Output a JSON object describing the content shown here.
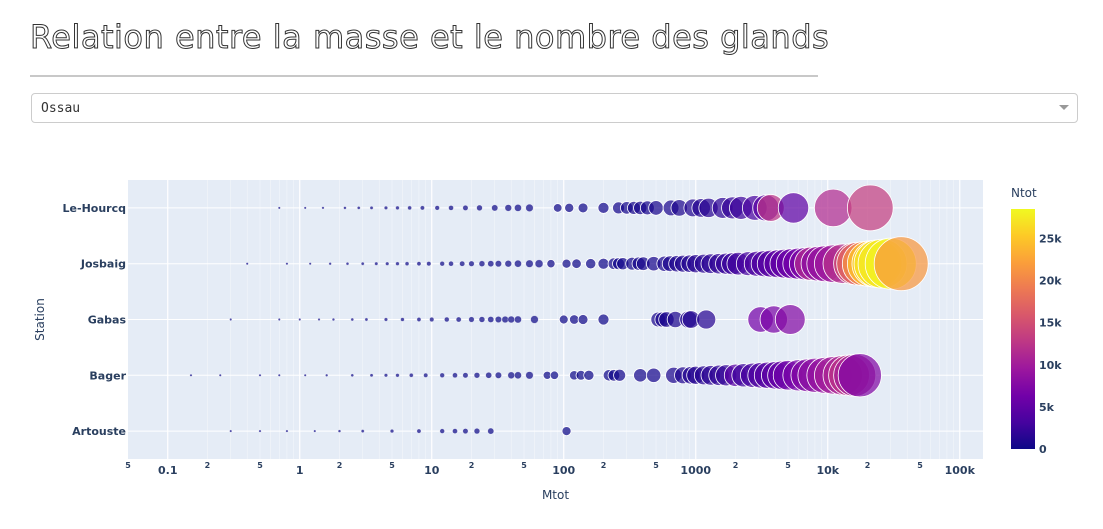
{
  "header": {
    "title": "Relation entre la masse et le nombre des glands"
  },
  "station_select": {
    "selected": "Ossau"
  },
  "chart_data": {
    "type": "scatter",
    "xlabel": "Mtot",
    "ylabel": "Station",
    "xscale": "log",
    "xlim": [
      0.05,
      150000
    ],
    "categories": [
      "Le-Hourcq",
      "Josbaig",
      "Gabas",
      "Bager",
      "Artouste"
    ],
    "x_major_ticks": [
      "0.1",
      "1",
      "10",
      "100",
      "1000",
      "10k",
      "100k"
    ],
    "x_minor_ticks": [
      "5",
      "2",
      "5",
      "2",
      "5",
      "2",
      "5",
      "2",
      "5",
      "2",
      "5",
      "2",
      "5",
      "2",
      "5"
    ],
    "colorbar": {
      "title": "Ntot",
      "ticks": [
        "0",
        "5k",
        "10k",
        "15k",
        "20k",
        "25k"
      ],
      "range": [
        0,
        28500
      ],
      "colors": [
        "#0d0887",
        "#46039f",
        "#7201a8",
        "#9c179e",
        "#bd3786",
        "#d8576b",
        "#ed7953",
        "#fb9f3a",
        "#fdca26",
        "#f0f921"
      ]
    },
    "plot_bgcolor": "#e5ecf6",
    "series": [
      {
        "station": "Le-Hourcq",
        "points": [
          [
            0.7,
            3
          ],
          [
            1.1,
            4
          ],
          [
            1.5,
            4
          ],
          [
            2.2,
            5
          ],
          [
            2.8,
            6
          ],
          [
            3.5,
            6
          ],
          [
            4.5,
            8
          ],
          [
            5.5,
            9
          ],
          [
            6.8,
            12
          ],
          [
            8.5,
            14
          ],
          [
            11,
            18
          ],
          [
            14,
            22
          ],
          [
            18,
            30
          ],
          [
            23,
            35
          ],
          [
            30,
            45
          ],
          [
            38,
            60
          ],
          [
            45,
            75
          ],
          [
            55,
            90
          ],
          [
            90,
            160
          ],
          [
            110,
            180
          ],
          [
            140,
            230
          ],
          [
            200,
            350
          ],
          [
            260,
            420
          ],
          [
            300,
            470
          ],
          [
            340,
            520
          ],
          [
            380,
            580
          ],
          [
            430,
            640
          ],
          [
            500,
            700
          ],
          [
            650,
            850
          ],
          [
            750,
            950
          ],
          [
            950,
            1150
          ],
          [
            1100,
            1350
          ],
          [
            1250,
            1550
          ],
          [
            1600,
            1900
          ],
          [
            1900,
            2300
          ],
          [
            2200,
            2700
          ],
          [
            2800,
            3400
          ],
          [
            3400,
            4600
          ],
          [
            3700,
            12500
          ],
          [
            5500,
            5000
          ],
          [
            11000,
            11500
          ],
          [
            21000,
            13500
          ]
        ]
      },
      {
        "station": "Josbaig",
        "points": [
          [
            0.4,
            1
          ],
          [
            0.8,
            2
          ],
          [
            1.2,
            3
          ],
          [
            1.7,
            3
          ],
          [
            2.3,
            4
          ],
          [
            3,
            5
          ],
          [
            3.8,
            6
          ],
          [
            4.6,
            6
          ],
          [
            5.5,
            7
          ],
          [
            6.5,
            8
          ],
          [
            8,
            10
          ],
          [
            9.5,
            12
          ],
          [
            12,
            14
          ],
          [
            14,
            18
          ],
          [
            17,
            22
          ],
          [
            20,
            26
          ],
          [
            24,
            30
          ],
          [
            28,
            35
          ],
          [
            32,
            40
          ],
          [
            38,
            48
          ],
          [
            45,
            55
          ],
          [
            55,
            65
          ],
          [
            65,
            80
          ],
          [
            80,
            100
          ],
          [
            105,
            130
          ],
          [
            125,
            160
          ],
          [
            160,
            200
          ],
          [
            200,
            260
          ],
          [
            240,
            320
          ],
          [
            260,
            360
          ],
          [
            280,
            380
          ],
          [
            330,
            430
          ],
          [
            370,
            500
          ],
          [
            400,
            550
          ],
          [
            480,
            650
          ],
          [
            580,
            750
          ],
          [
            640,
            860
          ],
          [
            720,
            980
          ],
          [
            800,
            1100
          ],
          [
            900,
            1300
          ],
          [
            1000,
            1450
          ],
          [
            1150,
            1600
          ],
          [
            1300,
            1800
          ],
          [
            1500,
            2000
          ],
          [
            1700,
            2300
          ],
          [
            1900,
            2600
          ],
          [
            2100,
            2900
          ],
          [
            2500,
            3200
          ],
          [
            2900,
            3500
          ],
          [
            3300,
            3900
          ],
          [
            3700,
            4300
          ],
          [
            4200,
            4800
          ],
          [
            4700,
            5200
          ],
          [
            5300,
            5800
          ],
          [
            6000,
            6400
          ],
          [
            6800,
            7200
          ],
          [
            7500,
            11500
          ],
          [
            8500,
            8200
          ],
          [
            9500,
            9000
          ],
          [
            11000,
            9800
          ],
          [
            13000,
            12000
          ],
          [
            16000,
            15000
          ],
          [
            17000,
            17500
          ],
          [
            19000,
            21000
          ],
          [
            21000,
            25000
          ],
          [
            23000,
            26000
          ],
          [
            24000,
            27000
          ],
          [
            26000,
            27500
          ],
          [
            30000,
            28000
          ],
          [
            36000,
            21500
          ]
        ]
      },
      {
        "station": "Gabas",
        "points": [
          [
            0.3,
            2
          ],
          [
            0.7,
            2
          ],
          [
            1,
            3
          ],
          [
            1.4,
            3
          ],
          [
            1.8,
            4
          ],
          [
            2.5,
            4
          ],
          [
            3.2,
            5
          ],
          [
            4.5,
            6
          ],
          [
            6,
            7
          ],
          [
            8,
            9
          ],
          [
            10,
            12
          ],
          [
            13,
            14
          ],
          [
            16,
            16
          ],
          [
            20,
            18
          ],
          [
            24,
            20
          ],
          [
            28,
            22
          ],
          [
            32,
            24
          ],
          [
            36,
            26
          ],
          [
            40,
            28
          ],
          [
            45,
            30
          ],
          [
            60,
            60
          ],
          [
            100,
            120
          ],
          [
            120,
            150
          ],
          [
            140,
            170
          ],
          [
            200,
            240
          ],
          [
            520,
            700
          ],
          [
            560,
            760
          ],
          [
            600,
            820
          ],
          [
            700,
            900
          ],
          [
            880,
            1100
          ],
          [
            920,
            1200
          ],
          [
            1200,
            1500
          ],
          [
            3100,
            6500
          ],
          [
            3900,
            7000
          ],
          [
            5200,
            7600
          ]
        ]
      },
      {
        "station": "Bager",
        "points": [
          [
            0.15,
            1
          ],
          [
            0.25,
            1
          ],
          [
            0.5,
            2
          ],
          [
            0.7,
            2
          ],
          [
            1.1,
            3
          ],
          [
            1.6,
            3
          ],
          [
            2.5,
            4
          ],
          [
            3.5,
            5
          ],
          [
            4.5,
            6
          ],
          [
            5.5,
            6
          ],
          [
            7,
            8
          ],
          [
            9,
            10
          ],
          [
            12,
            12
          ],
          [
            15,
            14
          ],
          [
            18,
            16
          ],
          [
            22,
            18
          ],
          [
            27,
            22
          ],
          [
            32,
            26
          ],
          [
            40,
            30
          ],
          [
            45,
            32
          ],
          [
            55,
            40
          ],
          [
            75,
            60
          ],
          [
            85,
            70
          ],
          [
            120,
            140
          ],
          [
            135,
            160
          ],
          [
            155,
            180
          ],
          [
            220,
            280
          ],
          [
            240,
            300
          ],
          [
            265,
            330
          ],
          [
            380,
            500
          ],
          [
            480,
            620
          ],
          [
            680,
            900
          ],
          [
            800,
            1050
          ],
          [
            920,
            1200
          ],
          [
            1000,
            1350
          ],
          [
            1150,
            1500
          ],
          [
            1300,
            1700
          ],
          [
            1500,
            1900
          ],
          [
            1700,
            2150
          ],
          [
            2000,
            4500
          ],
          [
            2300,
            2800
          ],
          [
            2700,
            3300
          ],
          [
            3100,
            3700
          ],
          [
            3500,
            4200
          ],
          [
            4000,
            4800
          ],
          [
            4500,
            5400
          ],
          [
            5000,
            6000
          ],
          [
            6000,
            6800
          ],
          [
            7000,
            7500
          ],
          [
            8000,
            8300
          ],
          [
            9500,
            9000
          ],
          [
            11000,
            10200
          ],
          [
            13000,
            11000
          ],
          [
            14500,
            12500
          ],
          [
            16000,
            10500
          ],
          [
            17500,
            7500
          ]
        ]
      },
      {
        "station": "Artouste",
        "points": [
          [
            0.3,
            1
          ],
          [
            0.5,
            1
          ],
          [
            0.8,
            2
          ],
          [
            1.3,
            2
          ],
          [
            2,
            3
          ],
          [
            3,
            3
          ],
          [
            5,
            4
          ],
          [
            8,
            5
          ],
          [
            12,
            6
          ],
          [
            15,
            7
          ],
          [
            18,
            8
          ],
          [
            22,
            9
          ],
          [
            28,
            10
          ],
          [
            105,
            60
          ]
        ]
      }
    ]
  }
}
